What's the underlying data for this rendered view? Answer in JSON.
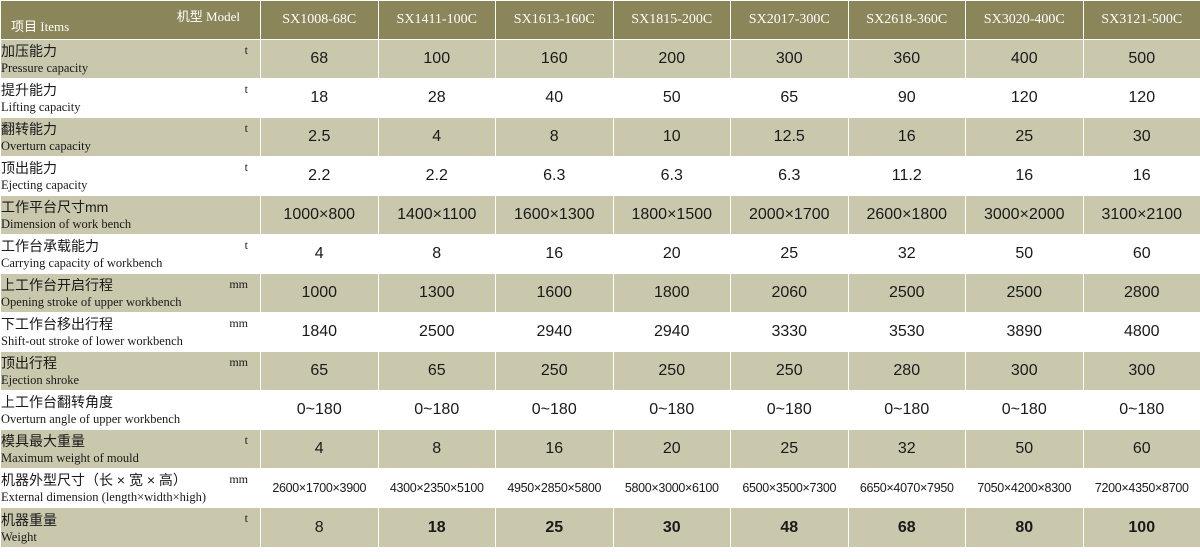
{
  "header": {
    "corner_model": "机型 Model",
    "corner_items": "项目 Items",
    "models": [
      "SX1008-68C",
      "SX1411-100C",
      "SX1613-160C",
      "SX1815-200C",
      "SX2017-300C",
      "SX2618-360C",
      "SX3020-400C",
      "SX3121-500C"
    ]
  },
  "rows": [
    {
      "cn": "加压能力",
      "en": "Pressure capacity",
      "unit": "t",
      "values": [
        "68",
        "100",
        "160",
        "200",
        "300",
        "360",
        "400",
        "500"
      ]
    },
    {
      "cn": "提升能力",
      "en": "Lifting capacity",
      "unit": "t",
      "values": [
        "18",
        "28",
        "40",
        "50",
        "65",
        "90",
        "120",
        "120"
      ]
    },
    {
      "cn": "翻转能力",
      "en": "Overturn capacity",
      "unit": "t",
      "values": [
        "2.5",
        "4",
        "8",
        "10",
        "12.5",
        "16",
        "25",
        "30"
      ]
    },
    {
      "cn": "顶出能力",
      "en": "Ejecting capacity",
      "unit": "t",
      "values": [
        "2.2",
        "2.2",
        "6.3",
        "6.3",
        "6.3",
        "11.2",
        "16",
        "16"
      ]
    },
    {
      "cn": "工作平台尺寸mm",
      "en": "Dimension of work bench",
      "unit": "",
      "values": [
        "1000×800",
        "1400×1100",
        "1600×1300",
        "1800×1500",
        "2000×1700",
        "2600×1800",
        "3000×2000",
        "3100×2100"
      ]
    },
    {
      "cn": "工作台承载能力",
      "en": "Carrying capacity of workbench",
      "unit": "t",
      "values": [
        "4",
        "8",
        "16",
        "20",
        "25",
        "32",
        "50",
        "60"
      ]
    },
    {
      "cn": "上工作台开启行程",
      "en": "Opening stroke of upper workbench",
      "unit": "mm",
      "values": [
        "1000",
        "1300",
        "1600",
        "1800",
        "2060",
        "2500",
        "2500",
        "2800"
      ]
    },
    {
      "cn": "下工作台移出行程",
      "en": "Shift-out stroke of lower workbench",
      "unit": "mm",
      "values": [
        "1840",
        "2500",
        "2940",
        "2940",
        "3330",
        "3530",
        "3890",
        "4800"
      ]
    },
    {
      "cn": "顶出行程",
      "en": "Ejection shroke",
      "unit": "mm",
      "values": [
        "65",
        "65",
        "250",
        "250",
        "250",
        "280",
        "300",
        "300"
      ]
    },
    {
      "cn": "上工作台翻转角度",
      "en": "Overturn angle of upper workbench",
      "unit": "",
      "values": [
        "0~180",
        "0~180",
        "0~180",
        "0~180",
        "0~180",
        "0~180",
        "0~180",
        "0~180"
      ]
    },
    {
      "cn": "模具最大重量",
      "en": "Maximum weight of mould",
      "unit": "t",
      "values": [
        "4",
        "8",
        "16",
        "20",
        "25",
        "32",
        "50",
        "60"
      ]
    },
    {
      "cn": "机器外型尺寸（长 × 宽 × 高）",
      "en": "External dimension (length×width×high)",
      "unit": "mm",
      "values": [
        "2600×1700×3900",
        "4300×2350×5100",
        "4950×2850×5800",
        "5800×3000×6100",
        "6500×3500×7300",
        "6650×4070×7950",
        "7050×4200×8300",
        "7200×4350×8700"
      ]
    },
    {
      "cn": "机器重量",
      "en": "Weight",
      "unit": "t",
      "values": [
        "8",
        "18",
        "25",
        "30",
        "48",
        "68",
        "80",
        "100"
      ]
    }
  ]
}
